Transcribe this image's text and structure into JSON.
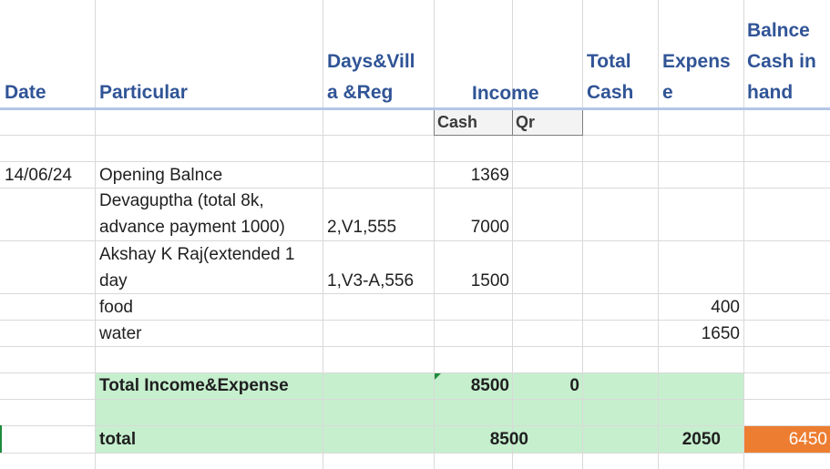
{
  "colors": {
    "header_text": "#305496",
    "header_rule": "#b4c6e7",
    "total_fill": "#c6efce",
    "balance_fill": "#ed7d31",
    "gridline": "#d9d9d9"
  },
  "headers": {
    "date": "Date",
    "particular": "Particular",
    "days_line1": "Days&Vill",
    "days_line2": "a &Reg",
    "income": "Income",
    "total_cash_line1": "Total",
    "total_cash_line2": "Cash",
    "expense_line1": "Expens",
    "expense_line2": "e",
    "balance_line1": "Balnce",
    "balance_line2": "Cash in",
    "balance_line3": "hand"
  },
  "subheaders": {
    "cash": "Cash",
    "qr": "Qr"
  },
  "rows": [
    {
      "date": "14/06/24",
      "particular": "Opening Balnce",
      "cash": "1369"
    },
    {
      "particular_line1": "Devaguptha (total 8k,",
      "particular_line2": "advance payment 1000)",
      "days": "2,V1,555",
      "cash": "7000"
    },
    {
      "particular_line1": "Akshay K Raj(extended  1",
      "particular_line2": "day",
      "days": "1,V3-A,556",
      "cash": "1500"
    },
    {
      "particular": "food",
      "expense": "400"
    },
    {
      "particular": "water",
      "expense": "1650"
    }
  ],
  "total_income_expense": {
    "label": "Total Income&Expense",
    "cash": "8500",
    "qr": "0"
  },
  "total": {
    "label": "total",
    "income": "8500",
    "expense": "2050",
    "balance": "6450"
  }
}
